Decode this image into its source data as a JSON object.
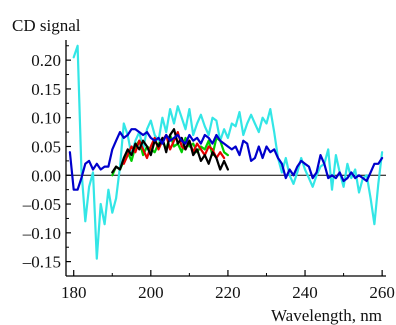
{
  "chart_data": {
    "type": "line",
    "title": "",
    "ylabel": "CD signal",
    "xlabel": "Wavelength, nm",
    "xlim": [
      178,
      261
    ],
    "ylim": [
      -0.175,
      0.235
    ],
    "xticks": [
      180,
      200,
      220,
      240,
      260
    ],
    "xtick_labels": [
      "180",
      "200",
      "220",
      "240",
      "260"
    ],
    "yticks": [
      0.2,
      0.15,
      0.1,
      0.05,
      0.0,
      -0.05,
      -0.1,
      -0.15
    ],
    "ytick_labels": [
      "0.20",
      "0.15",
      "0.10",
      "0.05",
      "0.00",
      "–0.05",
      "–0.10",
      "–0.15"
    ],
    "zero_line": true,
    "grid": false,
    "legend": "none",
    "series": [
      {
        "color": "#33e6e6",
        "x": [
          180,
          181,
          182,
          183,
          184,
          185,
          186,
          187,
          188,
          189,
          190,
          191,
          192,
          193,
          194,
          195,
          196,
          197,
          198,
          199,
          200,
          201,
          202,
          203,
          204,
          205,
          206,
          207,
          208,
          209,
          210,
          211,
          212,
          213,
          214,
          215,
          216,
          217,
          218,
          219,
          220,
          221,
          222,
          223,
          224,
          225,
          226,
          227,
          228,
          229,
          230,
          231,
          232,
          233,
          234,
          235,
          236,
          237,
          238,
          239,
          240,
          241,
          242,
          243,
          244,
          245,
          246,
          247,
          248,
          249,
          250,
          251,
          252,
          253,
          254,
          255,
          256,
          257,
          258,
          259,
          260
        ],
        "y": [
          0.205,
          0.225,
          0.01,
          -0.08,
          -0.02,
          0.005,
          -0.145,
          -0.05,
          -0.085,
          -0.025,
          -0.065,
          -0.04,
          0.015,
          0.09,
          0.07,
          0.035,
          0.06,
          0.075,
          0.045,
          0.08,
          0.095,
          0.07,
          0.06,
          0.1,
          0.075,
          0.115,
          0.09,
          0.12,
          0.1,
          0.08,
          0.115,
          0.07,
          0.09,
          0.105,
          0.085,
          0.07,
          0.1,
          0.095,
          0.06,
          0.08,
          0.065,
          0.09,
          0.085,
          0.11,
          0.07,
          0.09,
          0.105,
          0.09,
          0.075,
          0.1,
          0.09,
          0.115,
          0.075,
          0.03,
          0.005,
          0.03,
          0.0,
          -0.015,
          0.005,
          0.03,
          0.01,
          -0.005,
          -0.02,
          0.0,
          0.015,
          0.02,
          0.045,
          -0.025,
          0.035,
          0.005,
          -0.02,
          0.02,
          -0.005,
          0.01,
          -0.03,
          -0.005,
          0.0,
          -0.04,
          -0.085,
          -0.015,
          0.04
        ]
      },
      {
        "color": "#00cc00",
        "x": [
          190,
          191,
          192,
          193,
          194,
          195,
          196,
          197,
          198,
          199,
          200,
          201,
          202,
          203,
          204,
          205,
          206,
          207,
          208,
          209,
          210,
          211,
          212,
          213,
          214,
          215,
          216,
          217,
          218,
          219,
          220
        ],
        "y": [
          0.0,
          0.015,
          0.01,
          0.025,
          0.04,
          0.025,
          0.05,
          0.06,
          0.035,
          0.05,
          0.045,
          0.04,
          0.055,
          0.06,
          0.045,
          0.07,
          0.05,
          0.055,
          0.04,
          0.065,
          0.05,
          0.055,
          0.04,
          0.05,
          0.045,
          0.06,
          0.035,
          0.065,
          0.06,
          0.04,
          0.035
        ]
      },
      {
        "color": "#e60000",
        "x": [
          193,
          194,
          195,
          196,
          197,
          198,
          199,
          200,
          201,
          202,
          203,
          204,
          205,
          206,
          207,
          208,
          209,
          210,
          211,
          212,
          213,
          214,
          215,
          216,
          217,
          218,
          219
        ],
        "y": [
          0.02,
          0.035,
          0.05,
          0.04,
          0.06,
          0.045,
          0.03,
          0.05,
          0.065,
          0.045,
          0.06,
          0.07,
          0.045,
          0.06,
          0.075,
          0.05,
          0.045,
          0.06,
          0.04,
          0.055,
          0.045,
          0.035,
          0.05,
          0.045,
          0.03,
          0.04,
          0.03
        ]
      },
      {
        "color": "#000000",
        "x": [
          190,
          191,
          192,
          193,
          194,
          195,
          196,
          197,
          198,
          199,
          200,
          201,
          202,
          203,
          204,
          205,
          206,
          207,
          208,
          209,
          210,
          211,
          212,
          213,
          214,
          215,
          216,
          217,
          218,
          219,
          220
        ],
        "y": [
          0.005,
          0.015,
          0.01,
          0.03,
          0.045,
          0.035,
          0.055,
          0.045,
          0.06,
          0.05,
          0.035,
          0.06,
          0.05,
          0.065,
          0.04,
          0.07,
          0.08,
          0.055,
          0.065,
          0.045,
          0.06,
          0.035,
          0.045,
          0.025,
          0.035,
          0.02,
          0.04,
          0.03,
          0.01,
          0.025,
          0.01
        ]
      },
      {
        "color": "#0000cc",
        "x": [
          179,
          180,
          181,
          182,
          183,
          184,
          185,
          186,
          187,
          188,
          189,
          190,
          191,
          192,
          193,
          194,
          195,
          196,
          197,
          198,
          199,
          200,
          201,
          202,
          203,
          204,
          205,
          206,
          207,
          208,
          209,
          210,
          211,
          212,
          213,
          214,
          215,
          216,
          217,
          218,
          219,
          220,
          221,
          222,
          223,
          224,
          225,
          226,
          227,
          228,
          229,
          230,
          231,
          232,
          233,
          234,
          235,
          236,
          237,
          238,
          239,
          240,
          241,
          242,
          243,
          244,
          245,
          246,
          247,
          248,
          249,
          250,
          251,
          252,
          253,
          254,
          255,
          256,
          257,
          258,
          259,
          260
        ],
        "y": [
          0.04,
          -0.025,
          -0.025,
          -0.005,
          0.02,
          0.025,
          0.01,
          0.02,
          0.01,
          0.015,
          0.015,
          0.045,
          0.06,
          0.075,
          0.065,
          0.07,
          0.08,
          0.08,
          0.075,
          0.07,
          0.075,
          0.065,
          0.06,
          0.065,
          0.055,
          0.07,
          0.06,
          0.065,
          0.07,
          0.06,
          0.055,
          0.07,
          0.06,
          0.065,
          0.055,
          0.07,
          0.065,
          0.055,
          0.07,
          0.06,
          0.055,
          0.05,
          0.045,
          0.05,
          0.035,
          0.06,
          0.055,
          0.025,
          0.03,
          0.05,
          0.03,
          0.05,
          0.04,
          0.045,
          0.03,
          0.02,
          -0.005,
          0.01,
          0.0,
          0.015,
          0.025,
          0.02,
          0.015,
          -0.005,
          0.005,
          0.035,
          0.02,
          -0.005,
          0.0,
          -0.005,
          0.005,
          -0.01,
          -0.005,
          0.005,
          -0.005,
          0.0,
          -0.005,
          -0.01,
          0.005,
          0.02,
          0.02,
          0.03
        ]
      }
    ]
  }
}
